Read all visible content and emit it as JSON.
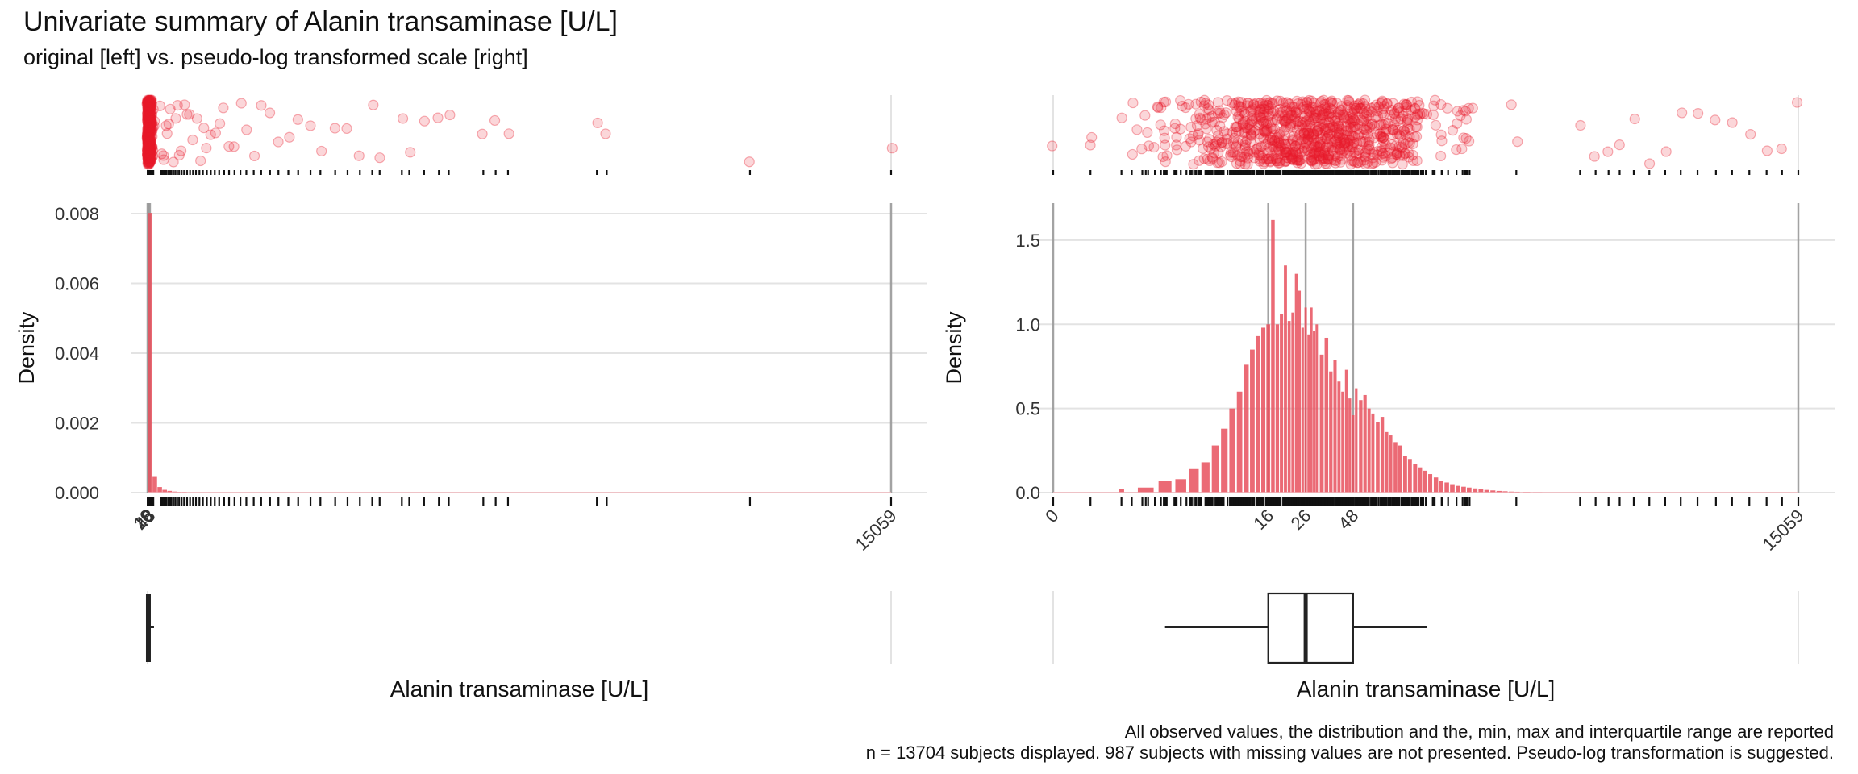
{
  "header": {
    "title": "Univariate summary of Alanin transaminase [U/L]",
    "subtitle": "original [left] vs. pseudo-log transformed scale [right]"
  },
  "footnotes": {
    "line1": "All observed values, the distribution and the, min, max and interquartile range are reported",
    "line2": "n = 13704 subjects displayed. 987 subjects with missing values are not presented. Pseudo-log transformation is suggested."
  },
  "colors": {
    "bar": "#e8505d",
    "point": "#e8192b",
    "rug": "#111111",
    "reference_line": "#9a9a9a",
    "grid": "#e3e3e3"
  },
  "chart_data": [
    {
      "panel": "left",
      "type": "bar",
      "scale": "linear",
      "xlabel": "Alanin transaminase [U/L]",
      "ylabel": "Density",
      "xlim": [
        0,
        15059
      ],
      "ylim": [
        0,
        0.0083
      ],
      "yticks": [
        {
          "value": 0,
          "label": "0.000"
        },
        {
          "value": 0.002,
          "label": "0.002"
        },
        {
          "value": 0.004,
          "label": "0.004"
        },
        {
          "value": 0.006,
          "label": "0.006"
        },
        {
          "value": 0.008,
          "label": "0.008"
        }
      ],
      "xticks": [
        {
          "value": 0,
          "label": "0"
        },
        {
          "value": 16,
          "label": "16"
        },
        {
          "value": 26,
          "label": "26"
        },
        {
          "value": 48,
          "label": "48"
        },
        {
          "value": 15059,
          "label": "15059"
        }
      ],
      "reference_lines": [
        0,
        16,
        26,
        48,
        15059
      ],
      "bins": [
        {
          "x0": 0,
          "x1": 100,
          "density": 0.00802
        },
        {
          "x0": 100,
          "x1": 200,
          "density": 0.00045
        },
        {
          "x0": 200,
          "x1": 300,
          "density": 0.00016
        },
        {
          "x0": 300,
          "x1": 400,
          "density": 8e-05
        },
        {
          "x0": 400,
          "x1": 500,
          "density": 5e-05
        },
        {
          "x0": 500,
          "x1": 600,
          "density": 3e-05
        },
        {
          "x0": 600,
          "x1": 700,
          "density": 2e-05
        },
        {
          "x0": 700,
          "x1": 800,
          "density": 2e-05
        },
        {
          "x0": 800,
          "x1": 900,
          "density": 1e-05
        },
        {
          "x0": 900,
          "x1": 1000,
          "density": 1e-05
        },
        {
          "x0": 1000,
          "x1": 1100,
          "density": 1e-05
        },
        {
          "x0": 1100,
          "x1": 1200,
          "density": 8e-06
        },
        {
          "x0": 1200,
          "x1": 1300,
          "density": 6e-06
        },
        {
          "x0": 1300,
          "x1": 1400,
          "density": 5e-06
        },
        {
          "x0": 1400,
          "x1": 1500,
          "density": 4e-06
        }
      ],
      "boxplot": {
        "min": 0,
        "q1": 16,
        "median": 26,
        "q3": 48,
        "whisker_high": 130,
        "max": 15059
      },
      "outliers": [
        270,
        300,
        330,
        350,
        380,
        420,
        450,
        480,
        520,
        560,
        600,
        640,
        690,
        740,
        800,
        860,
        920,
        980,
        1050,
        1120,
        1200,
        1280,
        1360,
        1450,
        1550,
        1650,
        1760,
        1880,
        2000,
        2150,
        2300,
        2480,
        2650,
        2850,
        3050,
        3300,
        3500,
        3800,
        4050,
        4300,
        4550,
        4700,
        5150,
        5300,
        5600,
        5900,
        6100,
        6800,
        7050,
        7300,
        9100,
        9300,
        12200,
        15059
      ]
    },
    {
      "panel": "right",
      "type": "bar",
      "scale": "pseudo-log",
      "xlabel": "Alanin transaminase [U/L]",
      "ylabel": "Density",
      "xlim": [
        0,
        15059
      ],
      "ylim": [
        0,
        1.72
      ],
      "yticks": [
        {
          "value": 0,
          "label": "0.0"
        },
        {
          "value": 0.5,
          "label": "0.5"
        },
        {
          "value": 1.0,
          "label": "1.0"
        },
        {
          "value": 1.5,
          "label": "1.5"
        }
      ],
      "xticks": [
        {
          "value": 0,
          "label": "0"
        },
        {
          "value": 16,
          "label": "16"
        },
        {
          "value": 26,
          "label": "26"
        },
        {
          "value": 48,
          "label": "48"
        },
        {
          "value": 15059,
          "label": "15059"
        }
      ],
      "reference_lines": [
        0,
        16,
        26,
        48,
        15059
      ],
      "bins": [
        {
          "x": 2,
          "density": 0.02
        },
        {
          "x": 3,
          "density": 0.03
        },
        {
          "x": 4,
          "density": 0.07
        },
        {
          "x": 5,
          "density": 0.08
        },
        {
          "x": 6,
          "density": 0.14
        },
        {
          "x": 7,
          "density": 0.18
        },
        {
          "x": 8,
          "density": 0.28
        },
        {
          "x": 9,
          "density": 0.38
        },
        {
          "x": 10,
          "density": 0.5
        },
        {
          "x": 11,
          "density": 0.6
        },
        {
          "x": 12,
          "density": 0.76
        },
        {
          "x": 13,
          "density": 0.85
        },
        {
          "x": 14,
          "density": 0.93
        },
        {
          "x": 15,
          "density": 0.98
        },
        {
          "x": 16,
          "density": 1.0
        },
        {
          "x": 17,
          "density": 1.62
        },
        {
          "x": 18,
          "density": 1.0
        },
        {
          "x": 19,
          "density": 1.06
        },
        {
          "x": 20,
          "density": 1.35
        },
        {
          "x": 21,
          "density": 1.02
        },
        {
          "x": 22,
          "density": 1.07
        },
        {
          "x": 23,
          "density": 1.3
        },
        {
          "x": 24,
          "density": 1.2
        },
        {
          "x": 25,
          "density": 0.98
        },
        {
          "x": 26,
          "density": 1.1
        },
        {
          "x": 27,
          "density": 0.94
        },
        {
          "x": 28,
          "density": 1.1
        },
        {
          "x": 29,
          "density": 0.96
        },
        {
          "x": 30,
          "density": 1.0
        },
        {
          "x": 32,
          "density": 0.82
        },
        {
          "x": 34,
          "density": 0.92
        },
        {
          "x": 36,
          "density": 0.72
        },
        {
          "x": 38,
          "density": 0.79
        },
        {
          "x": 40,
          "density": 0.66
        },
        {
          "x": 42,
          "density": 0.6
        },
        {
          "x": 44,
          "density": 0.73
        },
        {
          "x": 46,
          "density": 0.56
        },
        {
          "x": 48,
          "density": 0.46
        },
        {
          "x": 50,
          "density": 0.62
        },
        {
          "x": 53,
          "density": 0.55
        },
        {
          "x": 56,
          "density": 0.58
        },
        {
          "x": 59,
          "density": 0.5
        },
        {
          "x": 62,
          "density": 0.47
        },
        {
          "x": 66,
          "density": 0.42
        },
        {
          "x": 70,
          "density": 0.45
        },
        {
          "x": 74,
          "density": 0.36
        },
        {
          "x": 78,
          "density": 0.34
        },
        {
          "x": 83,
          "density": 0.3
        },
        {
          "x": 88,
          "density": 0.28
        },
        {
          "x": 94,
          "density": 0.22
        },
        {
          "x": 100,
          "density": 0.2
        },
        {
          "x": 107,
          "density": 0.17
        },
        {
          "x": 114,
          "density": 0.15
        },
        {
          "x": 122,
          "density": 0.13
        },
        {
          "x": 130,
          "density": 0.11
        },
        {
          "x": 140,
          "density": 0.09
        },
        {
          "x": 150,
          "density": 0.07
        },
        {
          "x": 161,
          "density": 0.06
        },
        {
          "x": 173,
          "density": 0.05
        },
        {
          "x": 186,
          "density": 0.04
        },
        {
          "x": 200,
          "density": 0.035
        },
        {
          "x": 215,
          "density": 0.03
        },
        {
          "x": 232,
          "density": 0.025
        },
        {
          "x": 250,
          "density": 0.02
        },
        {
          "x": 270,
          "density": 0.016
        },
        {
          "x": 292,
          "density": 0.013
        },
        {
          "x": 316,
          "density": 0.01
        },
        {
          "x": 342,
          "density": 0.008
        },
        {
          "x": 370,
          "density": 0.006
        },
        {
          "x": 400,
          "density": 0.005
        },
        {
          "x": 450,
          "density": 0.004
        },
        {
          "x": 520,
          "density": 0.003
        },
        {
          "x": 600,
          "density": 0.002
        },
        {
          "x": 700,
          "density": 0.002
        },
        {
          "x": 850,
          "density": 0.001
        },
        {
          "x": 1000,
          "density": 0.001
        },
        {
          "x": 1300,
          "density": 0.001
        }
      ],
      "boxplot": {
        "min": 0,
        "q1": 16,
        "median": 26,
        "q3": 48,
        "whisker_low": 4,
        "whisker_high": 125,
        "max": 15059
      }
    }
  ]
}
